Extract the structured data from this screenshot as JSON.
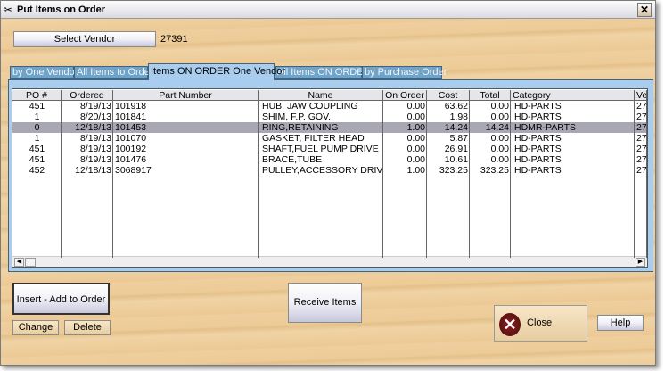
{
  "window": {
    "title": "Put Items on Order"
  },
  "vendor": {
    "button_label": "Select Vendor",
    "value": "27391"
  },
  "tabs": [
    {
      "label": "by One Vendor",
      "active": false
    },
    {
      "label": "All Items to Order",
      "active": false
    },
    {
      "label": "Items ON ORDER One Vendor",
      "active": true
    },
    {
      "label": "All Items ON ORDER",
      "active": false
    },
    {
      "label": "by Purchase Order",
      "active": false
    }
  ],
  "table": {
    "columns": [
      "PO #",
      "Ordered",
      "Part Number",
      "Name",
      "On Order",
      "Cost",
      "Total",
      "Category",
      "Ve"
    ],
    "rows": [
      [
        "451",
        "8/19/13",
        "101918",
        "HUB, JAW COUPLING",
        "0.00",
        "63.62",
        "0.00",
        "HD-PARTS",
        "27"
      ],
      [
        "1",
        "8/20/13",
        "101841",
        "SHIM, F.P. GOV.",
        "0.00",
        "1.98",
        "0.00",
        "HD-PARTS",
        "27"
      ],
      [
        "0",
        "12/18/13",
        "101453",
        "RING,RETAINING",
        "1.00",
        "14.24",
        "14.24",
        "HDMR-PARTS",
        "27"
      ],
      [
        "1",
        "8/19/13",
        "101070",
        "GASKET, FILTER HEAD",
        "0.00",
        "5.87",
        "0.00",
        "HD-PARTS",
        "27"
      ],
      [
        "451",
        "8/19/13",
        "100192",
        "SHAFT,FUEL PUMP DRIVE",
        "0.00",
        "26.91",
        "0.00",
        "HD-PARTS",
        "27"
      ],
      [
        "451",
        "8/19/13",
        "101476",
        "BRACE,TUBE",
        "0.00",
        "10.61",
        "0.00",
        "HD-PARTS",
        "27"
      ],
      [
        "452",
        "12/18/13",
        "3068917",
        "PULLEY,ACCESSORY DRIVE",
        "1.00",
        "323.25",
        "323.25",
        "HD-PARTS",
        "27"
      ]
    ],
    "selected_row": 2
  },
  "buttons": {
    "insert": "Insert - Add to Order",
    "change": "Change",
    "delete": "Delete",
    "receive": "Receive Items",
    "close": "Close",
    "help": "Help"
  }
}
